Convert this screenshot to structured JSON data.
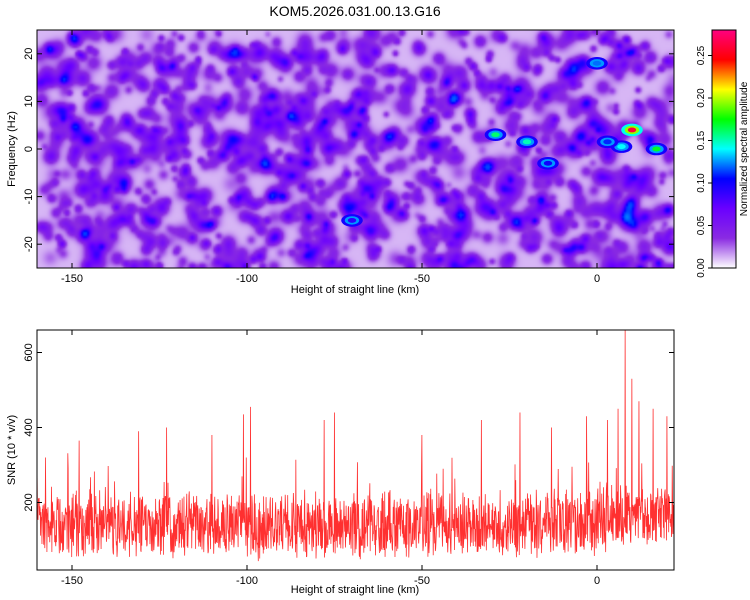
{
  "page": {
    "title": "KOM5.2026.031.00.13.G16"
  },
  "colors": {
    "line": "#ff3030",
    "axis": "#000000",
    "background": "#ffffff"
  },
  "chart_data": [
    {
      "type": "heatmap",
      "title": "KOM5.2026.031.00.13.G16",
      "xlabel": "Height of straight line (km)",
      "ylabel": "Frequency (Hz)",
      "xlim": [
        -160,
        22
      ],
      "ylim": [
        -25,
        25
      ],
      "xticks": [
        -150,
        -100,
        -50,
        0
      ],
      "yticks": [
        -20,
        -10,
        0,
        10,
        20
      ],
      "colorbar": {
        "label": "Normalized spectral amplitude",
        "range": [
          0.0,
          0.28
        ],
        "ticks": [
          0.0,
          0.05,
          0.1,
          0.15,
          0.2,
          0.25
        ],
        "tick_labels": [
          "0.00",
          "0.05",
          "0.10",
          "0.15",
          "0.20",
          "0.25"
        ],
        "colormap": [
          "#ffffff",
          "#8a2be2",
          "#6a00ff",
          "#0000ff",
          "#00ffff",
          "#00ff00",
          "#ffff00",
          "#ff0000",
          "#ff0080"
        ]
      },
      "features": {
        "background_level": 0.05,
        "strong_peaks": [
          {
            "x": 10,
            "y": 4,
            "amplitude": 0.26
          },
          {
            "x": 17,
            "y": 0,
            "amplitude": 0.17
          },
          {
            "x": -20,
            "y": 1.5,
            "amplitude": 0.15
          },
          {
            "x": -29,
            "y": 3,
            "amplitude": 0.16
          },
          {
            "x": 0,
            "y": 18,
            "amplitude": 0.12
          },
          {
            "x": 7,
            "y": 0.5,
            "amplitude": 0.14
          },
          {
            "x": 3,
            "y": 1.5,
            "amplitude": 0.11
          },
          {
            "x": -14,
            "y": -3,
            "amplitude": 0.1
          },
          {
            "x": -70,
            "y": -15,
            "amplitude": 0.09
          }
        ]
      }
    },
    {
      "type": "line",
      "xlabel": "Height of straight line (km)",
      "ylabel": "SNR (10 * v/v)",
      "xlim": [
        -160,
        22
      ],
      "ylim": [
        20,
        660
      ],
      "xticks": [
        -150,
        -100,
        -50,
        0
      ],
      "yticks": [
        200,
        400,
        600
      ],
      "series": [
        {
          "name": "SNR",
          "color": "#ff3030",
          "baseline_mean": 130,
          "noise_amplitude": 150,
          "spikes": [
            {
              "x": -160,
              "y": 300
            },
            {
              "x": -148,
              "y": 365
            },
            {
              "x": -131,
              "y": 390
            },
            {
              "x": -123,
              "y": 400
            },
            {
              "x": -110,
              "y": 380
            },
            {
              "x": -101,
              "y": 435
            },
            {
              "x": -99,
              "y": 455
            },
            {
              "x": -78,
              "y": 420
            },
            {
              "x": -75,
              "y": 440
            },
            {
              "x": -50,
              "y": 380
            },
            {
              "x": -33,
              "y": 420
            },
            {
              "x": -22,
              "y": 440
            },
            {
              "x": -13,
              "y": 400
            },
            {
              "x": -3,
              "y": 430
            },
            {
              "x": 3,
              "y": 420
            },
            {
              "x": 6,
              "y": 450
            },
            {
              "x": 8,
              "y": 660
            },
            {
              "x": 10,
              "y": 530
            },
            {
              "x": 12,
              "y": 470
            },
            {
              "x": 16,
              "y": 450
            },
            {
              "x": 20,
              "y": 430
            }
          ]
        }
      ]
    }
  ]
}
